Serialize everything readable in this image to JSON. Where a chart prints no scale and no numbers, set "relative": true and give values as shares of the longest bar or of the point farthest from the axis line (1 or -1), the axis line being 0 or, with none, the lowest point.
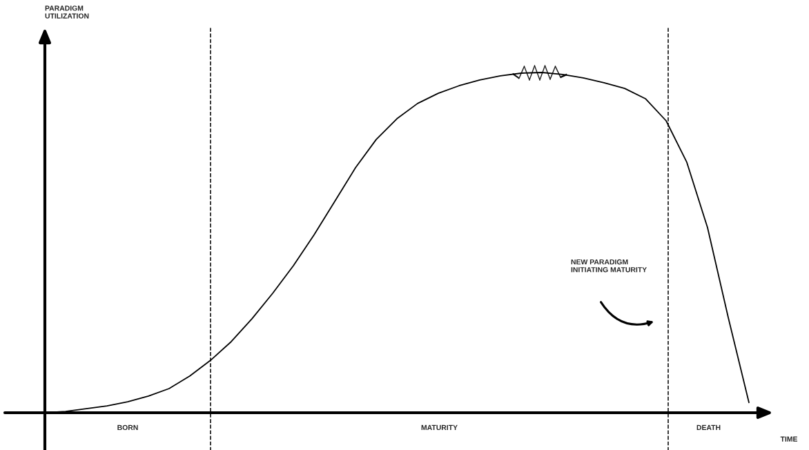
{
  "chart_data": {
    "type": "line",
    "relative": true,
    "xlabel": "TIME",
    "categories": [
      null,
      null,
      null,
      null,
      null,
      null,
      null,
      null,
      null,
      null,
      null,
      null,
      null,
      null,
      null,
      null,
      null,
      null,
      null,
      null,
      null,
      null,
      null,
      null,
      null,
      null,
      null,
      null,
      null,
      null,
      null,
      null,
      null,
      null,
      null
    ],
    "series": [
      {
        "color": "#000000",
        "values": [
          0,
          0.004,
          0.012,
          0.02,
          0.032,
          0.049,
          0.071,
          0.108,
          0.154,
          0.209,
          0.276,
          0.351,
          0.432,
          0.523,
          0.621,
          0.72,
          0.803,
          0.864,
          0.909,
          0.939,
          0.961,
          0.978,
          0.99,
          0.998,
          1.0,
          0.994,
          0.984,
          0.97,
          0.953,
          0.923,
          0.858,
          0.736,
          0.544,
          0.28,
          0.03
        ]
      }
    ],
    "annotations": [
      "BORN",
      "MATURITY",
      "DEATH",
      "NEW PARADIGM\nINITIATING MATURITY",
      "PARADIGM\nUTILIZATION"
    ],
    "marker": "none",
    "line_style": "solid"
  }
}
